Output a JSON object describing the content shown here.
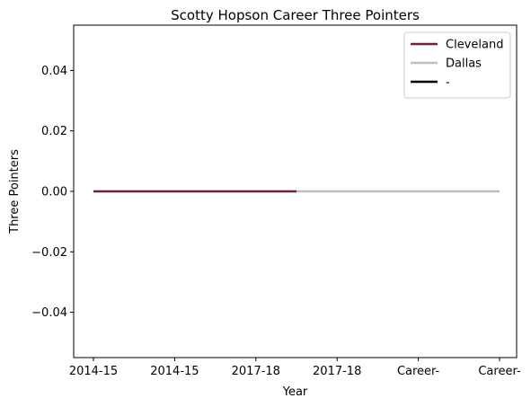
{
  "chart_data": {
    "type": "line",
    "title": "Scotty Hopson Career Three Pointers",
    "xlabel": "Year",
    "ylabel": "Three Pointers",
    "categories": [
      "2014-15",
      "2014-15",
      "2017-18",
      "2017-18",
      "Career-",
      "Career-"
    ],
    "ylim": [
      -0.055,
      0.055
    ],
    "yticks": [
      0.04,
      0.02,
      0.0,
      -0.02,
      -0.04
    ],
    "ytick_labels": [
      "0.04",
      "0.02",
      "0.00",
      "−0.02",
      "−0.04"
    ],
    "grid": false,
    "legend_position": "top-right",
    "series": [
      {
        "name": "Cleveland",
        "color": "#6b2338",
        "x": [
          0,
          2.5
        ],
        "values": [
          0,
          0
        ]
      },
      {
        "name": "Dallas",
        "color": "#bfbfbf",
        "x": [
          2.5,
          5
        ],
        "values": [
          0,
          0
        ]
      },
      {
        "name": "-",
        "color": "#000000",
        "x": [],
        "values": []
      }
    ]
  }
}
